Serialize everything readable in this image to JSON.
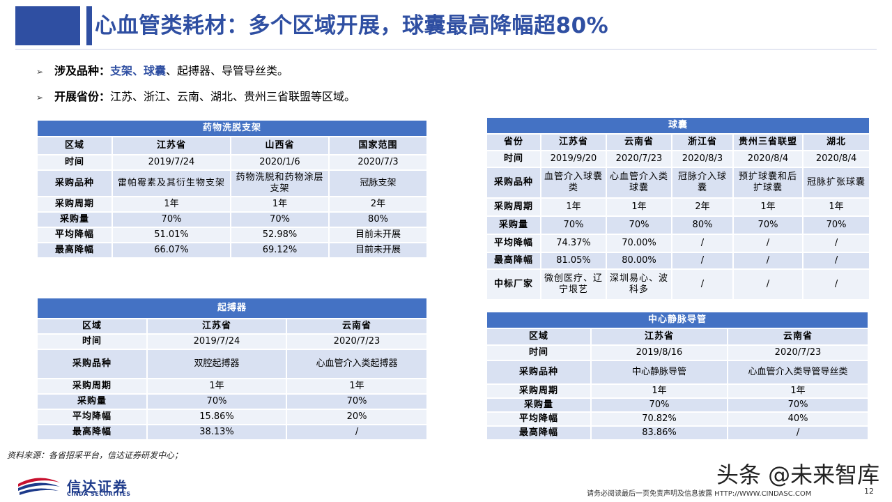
{
  "title": "心血管类耗材：多个区域开展，球囊最高降幅超80%",
  "bullets": {
    "b1": {
      "key": "涉及品种：",
      "hl": "支架、球囊",
      "rest": "、起搏器、导管导丝类。"
    },
    "b2": {
      "key": "开展省份：",
      "rest": "江苏、浙江、云南、湖北、贵州三省联盟等区域。"
    }
  },
  "tables": {
    "stent": {
      "title": "药物洗脱支架",
      "rows": [
        [
          "区域",
          "江苏省",
          "山西省",
          "国家范围"
        ],
        [
          "时间",
          "2019/7/24",
          "2020/1/6",
          "2020/7/3"
        ],
        [
          "采购品种",
          "雷帕霉素及其衍生物支架",
          "药物洗脱和药物涂层支架",
          "冠脉支架"
        ],
        [
          "采购周期",
          "1年",
          "1年",
          "2年"
        ],
        [
          "采购量",
          "70%",
          "70%",
          "80%"
        ],
        [
          "平均降幅",
          "51.01%",
          "52.98%",
          "目前未开展"
        ],
        [
          "最高降幅",
          "66.07%",
          "69.12%",
          "目前未开展"
        ]
      ]
    },
    "balloon": {
      "title": "球囊",
      "rows": [
        [
          "省份",
          "江苏省",
          "云南省",
          "浙江省",
          "贵州三省联盟",
          "湖北"
        ],
        [
          "时间",
          "2019/9/20",
          "2020/7/23",
          "2020/8/3",
          "2020/8/4",
          "2020/8/4"
        ],
        [
          "采购品种",
          "血管介入球囊类",
          "心血管介入类球囊",
          "冠脉介入球囊",
          "预扩球囊和后扩球囊",
          "冠脉扩张球囊"
        ],
        [
          "采购周期",
          "1年",
          "1年",
          "2年",
          "1年",
          "1年"
        ],
        [
          "采购量",
          "70%",
          "70%",
          "80%",
          "70%",
          "70%"
        ],
        [
          "平均降幅",
          "74.37%",
          "70.00%",
          "/",
          "/",
          "/"
        ],
        [
          "最高降幅",
          "81.05%",
          "80.00%",
          "/",
          "/",
          "/"
        ],
        [
          "中标厂家",
          "微创医疗、辽宁垠艺",
          "深圳易心、波科多",
          "/",
          "/",
          "/"
        ]
      ]
    },
    "pacemaker": {
      "title": "起搏器",
      "rows": [
        [
          "区域",
          "江苏省",
          "云南省"
        ],
        [
          "时间",
          "2019/7/24",
          "2020/7/23"
        ],
        [
          "采购品种",
          "双腔起搏器",
          "心血管介入类起搏器"
        ],
        [
          "采购周期",
          "1年",
          "1年"
        ],
        [
          "采购量",
          "70%",
          "70%"
        ],
        [
          "平均降幅",
          "15.86%",
          "20%"
        ],
        [
          "最高降幅",
          "38.13%",
          "/"
        ]
      ]
    },
    "catheter": {
      "title": "中心静脉导管",
      "rows": [
        [
          "区域",
          "江苏省",
          "云南省"
        ],
        [
          "时间",
          "2019/8/16",
          "2020/7/23"
        ],
        [
          "采购品种",
          "中心静脉导管",
          "心血管介入类导管导丝类"
        ],
        [
          "采购周期",
          "1年",
          "1年"
        ],
        [
          "采购量",
          "70%",
          "70%"
        ],
        [
          "平均降幅",
          "70.82%",
          "40%"
        ],
        [
          "最高降幅",
          "83.86%",
          "/"
        ]
      ]
    }
  },
  "footer": {
    "source": "资料来源：各省招采平台，信达证券研发中心；",
    "logo_cn": "信达证券",
    "logo_en": "CINDA SECURITIES",
    "disclaimer": "请务必阅读最后一页免责声明及信息披露  HTTP://WWW.CINDASC.COM",
    "page": "12",
    "watermark": "头条 @未来智库"
  },
  "colors": {
    "brand": "#2f4fa2",
    "header": "#4472c4",
    "row_dark": "#d9e1f2",
    "row_light": "#eef2f9"
  }
}
